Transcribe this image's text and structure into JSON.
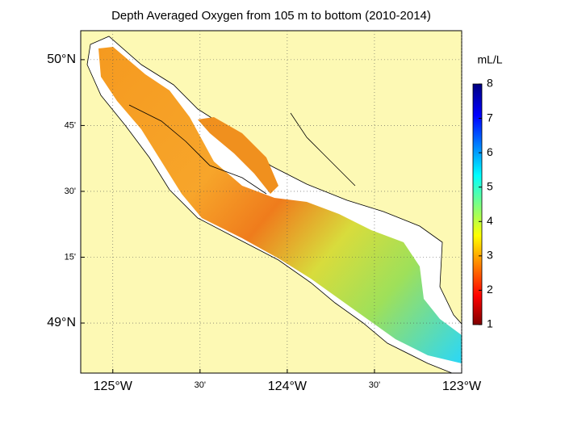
{
  "map": {
    "title": "Depth Averaged Oxygen from 105 m to bottom (2010-2014)",
    "lon_range": [
      -125.184,
      -123.0
    ],
    "lat_range": [
      48.81,
      50.11
    ],
    "lon_ticks": [
      {
        "value": -125,
        "label": "125°W"
      },
      {
        "value": -124.5,
        "label": "30'"
      },
      {
        "value": -124,
        "label": "124°W"
      },
      {
        "value": -123.5,
        "label": "30'"
      },
      {
        "value": -123,
        "label": "123°W"
      }
    ],
    "lat_ticks": [
      {
        "value": 50,
        "label": "50°N"
      },
      {
        "value": 49.75,
        "label": "45'"
      },
      {
        "value": 49.5,
        "label": "30'"
      },
      {
        "value": 49.25,
        "label": "15'"
      },
      {
        "value": 49,
        "label": "49°N"
      }
    ],
    "grid": true,
    "colorbar": {
      "label": "mL/L",
      "lim": [
        1,
        8
      ],
      "ticks": [
        1,
        2,
        3,
        4,
        5,
        6,
        7,
        8
      ]
    }
  }
}
